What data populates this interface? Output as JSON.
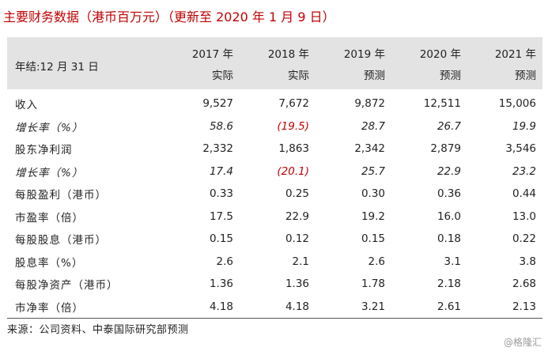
{
  "title": "主要财务数据（港币百万元）（更新至 2020 年 1 月 9 日）",
  "header": {
    "row_label": "年结:12 月 31 日",
    "years": [
      "2017 年",
      "2018 年",
      "2019 年",
      "2020 年",
      "2021 年"
    ],
    "types": [
      "实际",
      "实际",
      "预测",
      "预测",
      "预测"
    ]
  },
  "rows": [
    {
      "label": "收入",
      "values": [
        "9,527",
        "7,672",
        "9,872",
        "12,511",
        "15,006"
      ]
    },
    {
      "label": "增长率（%）",
      "values": [
        "58.6",
        "(19.5)",
        "28.7",
        "26.7",
        "19.9"
      ]
    },
    {
      "label": "股东净利润",
      "values": [
        "2,332",
        "1,863",
        "2,342",
        "2,879",
        "3,546"
      ]
    },
    {
      "label": "增长率（%）",
      "values": [
        "17.4",
        "(20.1)",
        "25.7",
        "22.9",
        "23.2"
      ]
    },
    {
      "label": "每股盈利（港币）",
      "values": [
        "0.33",
        "0.25",
        "0.30",
        "0.36",
        "0.44"
      ]
    },
    {
      "label": "市盈率（倍）",
      "values": [
        "17.5",
        "22.9",
        "19.2",
        "16.0",
        "13.0"
      ]
    },
    {
      "label": "每股股息（港币）",
      "values": [
        "0.15",
        "0.12",
        "0.15",
        "0.18",
        "0.22"
      ]
    },
    {
      "label": "股息率（%）",
      "values": [
        "2.6",
        "2.1",
        "2.6",
        "3.1",
        "3.8"
      ]
    },
    {
      "label": "每股净资产（港币）",
      "values": [
        "1.36",
        "1.36",
        "1.78",
        "2.18",
        "2.68"
      ]
    },
    {
      "label": "市净率（倍）",
      "values": [
        "4.18",
        "4.18",
        "3.21",
        "2.61",
        "2.13"
      ]
    }
  ],
  "source": "来源：公司资料、中泰国际研究部预测",
  "watermark": "@格隆汇",
  "colors": {
    "title": "#c00000",
    "negative": "#c00000",
    "header_bg": "#e3e3e3",
    "watermark": "#9a9a9a"
  }
}
